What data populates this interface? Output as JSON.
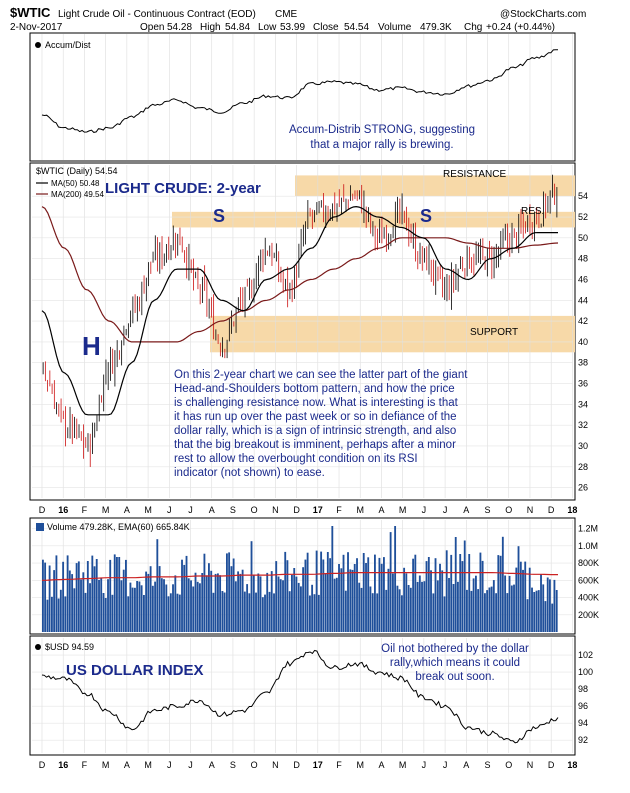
{
  "header": {
    "symbol": "$WTIC",
    "name": "Light Crude Oil - Continuous Contract (EOD)",
    "exchange": "CME",
    "source": "@StockCharts.com",
    "date": "2-Nov-2017",
    "open_label": "Open",
    "open": "54.28",
    "high_label": "High",
    "high": "54.84",
    "low_label": "Low",
    "low": "53.99",
    "close_label": "Close",
    "close": "54.54",
    "volume_label": "Volume",
    "volume": "479.3K",
    "chg_label": "Chg",
    "chg": "+0.24 (+0.44%)"
  },
  "accum_panel": {
    "legend": "Accum/Dist",
    "note_lines": [
      "Accum-Distrib STRONG, suggesting",
      "that a major rally is brewing."
    ]
  },
  "price_panel": {
    "legend_title": "$WTIC (Daily) 54.54",
    "ma50_legend": "MA(50) 50.48",
    "ma200_legend": "MA(200) 49.54",
    "big_title": "LIGHT CRUDE: 2-year",
    "resistance_label": "RESISTANCE",
    "res_label": "RES.",
    "support_label": "SUPPORT",
    "h_label": "H",
    "s1_label": "S",
    "s2_label": "S",
    "commentary": [
      "On this 2-year chart we can see the latter part of the giant",
      "Head-and-Shoulders bottom pattern, and how the price",
      "is challenging resistance now. What is interesting is that",
      "it has run up over the past week or so in defiance of the",
      "dollar rally, which is a sign of intrinsic strength, and also",
      "that the big breakout is imminent, perhaps after a minor",
      "rest to allow the overbought condition on its RSI",
      "indicator (not shown) to ease."
    ]
  },
  "volume_panel": {
    "legend": "Volume 479.28K, EMA(60) 665.84K"
  },
  "usd_panel": {
    "legend": "$USD 94.59",
    "big_title": "US DOLLAR INDEX",
    "note_lines": [
      "Oil not bothered by the dollar",
      "rally,which means it could",
      "break out soon."
    ]
  },
  "colors": {
    "candle_down": "#cc1111",
    "candle_up": "#000000",
    "ma50": "#000000",
    "ma200": "#7a1a1a",
    "band": "#f7d9a8",
    "volume_bar": "#1f4f9a",
    "volume_ema": "#cc2222",
    "annotation": "#1b2a8c"
  },
  "chart_data": {
    "type": "line",
    "x_ticks": [
      "D",
      "16",
      "F",
      "M",
      "A",
      "M",
      "J",
      "J",
      "A",
      "S",
      "O",
      "N",
      "D",
      "17",
      "F",
      "M",
      "A",
      "M",
      "J",
      "J",
      "A",
      "S",
      "O",
      "N",
      "D",
      "18"
    ],
    "panels": [
      {
        "name": "Accum/Dist",
        "type": "line",
        "x": [
          "Dec-15",
          "Jan-16",
          "Feb-16",
          "Mar-16",
          "Apr-16",
          "May-16",
          "Jun-16",
          "Jul-16",
          "Aug-16",
          "Sep-16",
          "Oct-16",
          "Nov-16",
          "Dec-16",
          "Jan-17",
          "Feb-17",
          "Mar-17",
          "Apr-17",
          "May-17",
          "Jun-17",
          "Jul-17",
          "Aug-17",
          "Sep-17",
          "Oct-17",
          "Nov-17"
        ],
        "values": [
          0.35,
          0.22,
          0.18,
          0.22,
          0.33,
          0.45,
          0.5,
          0.42,
          0.38,
          0.47,
          0.54,
          0.52,
          0.66,
          0.68,
          0.66,
          0.6,
          0.62,
          0.58,
          0.56,
          0.64,
          0.7,
          0.82,
          0.92,
          1.0
        ]
      },
      {
        "name": "$WTIC (Daily)",
        "type": "candlestick",
        "ylim": [
          25,
          57
        ],
        "y_ticks": [
          26,
          28,
          30,
          32,
          34,
          36,
          38,
          40,
          42,
          44,
          46,
          48,
          50,
          52,
          54
        ],
        "x": [
          "Dec-15",
          "Jan-16",
          "Feb-16",
          "Mar-16",
          "Apr-16",
          "May-16",
          "Jun-16",
          "Jul-16",
          "Aug-16",
          "Sep-16",
          "Oct-16",
          "Nov-16",
          "Dec-16",
          "Jan-17",
          "Feb-17",
          "Mar-17",
          "Apr-17",
          "May-17",
          "Jun-17",
          "Jul-17",
          "Aug-17",
          "Sep-17",
          "Oct-17",
          "Nov-17"
        ],
        "close": [
          37,
          32,
          30,
          38,
          43,
          48,
          50,
          45,
          40,
          44,
          49,
          45,
          52,
          53,
          54,
          50,
          52,
          48,
          45,
          48,
          48,
          50,
          52,
          54.5
        ],
        "high": [
          43,
          36,
          34,
          40,
          46,
          50,
          52,
          50,
          47,
          48,
          51,
          49,
          54.5,
          55,
          55,
          54,
          54,
          52,
          48,
          50,
          50,
          52,
          54,
          54.8
        ],
        "low": [
          33,
          28,
          26,
          32,
          38,
          43,
          46,
          43,
          39,
          42,
          44,
          43,
          45,
          51,
          52,
          47,
          48,
          46,
          42,
          44,
          46,
          48,
          50,
          53.9
        ],
        "series": [
          {
            "name": "MA(50)",
            "values": [
              43,
              37,
              33,
              33,
              38,
              44,
              47,
              47,
              44,
              43,
              46,
              47,
              49,
              52,
              53,
              52,
              51,
              50,
              47,
              46,
              48,
              49,
              50.5,
              50.5
            ]
          },
          {
            "name": "MA(200)",
            "values": [
              53,
              49,
              45,
              42,
              40,
              40,
              40,
              41,
              42,
              43,
              44,
              45,
              46,
              47,
              48,
              49,
              50,
              50,
              50,
              49.5,
              49,
              49,
              49.3,
              49.5
            ]
          }
        ],
        "zones": [
          {
            "label": "RESISTANCE",
            "y_range": [
              54,
              56
            ]
          },
          {
            "label": "RES.",
            "y_range": [
              51,
              52.5
            ]
          },
          {
            "label": "SUPPORT",
            "y_range": [
              39,
              42.5
            ]
          }
        ]
      },
      {
        "name": "Volume",
        "type": "bar",
        "y_ticks_label": [
          "200K",
          "400K",
          "600K",
          "800K",
          "1.0M",
          "1.2M"
        ],
        "ylim": [
          0,
          1300000
        ],
        "x": [
          "Dec-15",
          "Jan-16",
          "Feb-16",
          "Mar-16",
          "Apr-16",
          "May-16",
          "Jun-16",
          "Jul-16",
          "Aug-16",
          "Sep-16",
          "Oct-16",
          "Nov-16",
          "Dec-16",
          "Jan-17",
          "Feb-17",
          "Mar-17",
          "Apr-17",
          "May-17",
          "Jun-17",
          "Jul-17",
          "Aug-17",
          "Sep-17",
          "Oct-17",
          "Nov-17"
        ],
        "values": [
          650000,
          720000,
          760000,
          700000,
          690000,
          660000,
          680000,
          700000,
          720000,
          700000,
          680000,
          720000,
          740000,
          730000,
          760000,
          770000,
          740000,
          720000,
          730000,
          760000,
          720000,
          700000,
          690000,
          480000
        ],
        "series": [
          {
            "name": "EMA(60)",
            "values": [
              600000,
              610000,
              620000,
              630000,
              630000,
              640000,
              640000,
              650000,
              650000,
              660000,
              660000,
              670000,
              670000,
              680000,
              690000,
              690000,
              690000,
              690000,
              690000,
              690000,
              690000,
              680000,
              670000,
              665840
            ]
          }
        ]
      },
      {
        "name": "$USD",
        "type": "line",
        "ylim": [
          90.5,
          104
        ],
        "y_ticks": [
          92,
          94,
          96,
          98,
          100,
          102
        ],
        "x": [
          "Dec-15",
          "Jan-16",
          "Feb-16",
          "Mar-16",
          "Apr-16",
          "May-16",
          "Jun-16",
          "Jul-16",
          "Aug-16",
          "Sep-16",
          "Oct-16",
          "Nov-16",
          "Dec-16",
          "Jan-17",
          "Feb-17",
          "Mar-17",
          "Apr-17",
          "May-17",
          "Jun-17",
          "Jul-17",
          "Aug-17",
          "Sep-17",
          "Oct-17",
          "Nov-17"
        ],
        "values": [
          99.5,
          99.2,
          97.5,
          95.3,
          93.3,
          95.5,
          96.0,
          96.7,
          95.0,
          95.5,
          97.5,
          101.0,
          102.5,
          100.5,
          101.0,
          100.0,
          99.3,
          97.0,
          96.0,
          93.5,
          92.8,
          91.8,
          93.5,
          94.59
        ]
      }
    ]
  }
}
